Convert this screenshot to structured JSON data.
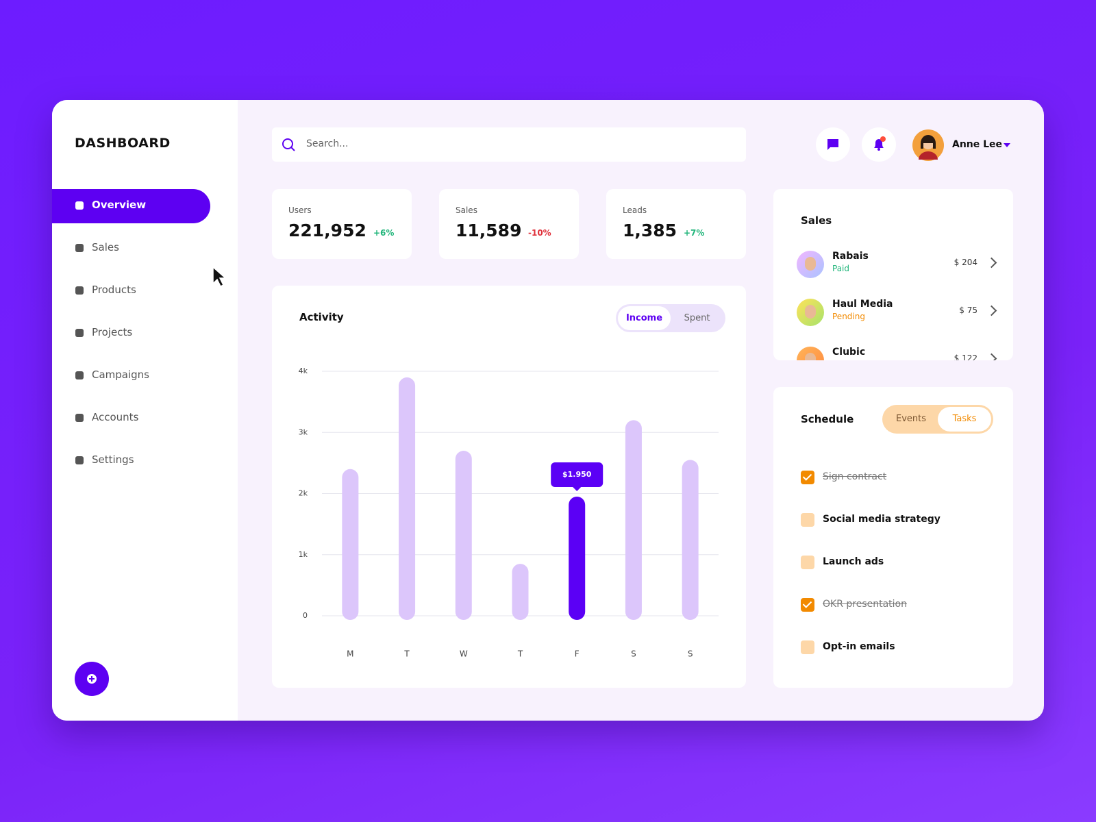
{
  "sidebar": {
    "title": "DASHBOARD",
    "nav": [
      "Overview",
      "Sales",
      "Products",
      "Projects",
      "Campaigns",
      "Accounts",
      "Settings"
    ]
  },
  "header": {
    "search_placeholder": "Search...",
    "user": "Anne Lee"
  },
  "stats": [
    {
      "label": "Users",
      "value": "221,952",
      "change": "+6%"
    },
    {
      "label": "Sales",
      "value": "11,589",
      "change": "-10%"
    },
    {
      "label": "Leads",
      "value": "1,385",
      "change": "+7%"
    }
  ],
  "chart_data": {
    "type": "bar",
    "title": "Activity",
    "toggle": [
      "Income",
      "Spent"
    ],
    "categories": [
      "M",
      "T",
      "W",
      "T",
      "F",
      "S",
      "S"
    ],
    "values": [
      2400,
      3900,
      2700,
      850,
      1950,
      3200,
      2550
    ],
    "value_labels": [
      null,
      null,
      null,
      null,
      "$1.950",
      null,
      null
    ],
    "colors": [
      "#dcc6fb",
      "#dcc6fb",
      "#dcc6fb",
      "#dcc6fb",
      "#5b00f5",
      "#dcc6fb",
      "#dcc6fb"
    ],
    "ylim": [
      0,
      4000
    ],
    "yticks": [
      0,
      {
        "value": 1000,
        "label": "1k"
      },
      {
        "value": 2000,
        "label": "2k"
      },
      {
        "value": 3000,
        "label": "3k"
      },
      {
        "value": 4000,
        "label": "4k"
      }
    ],
    "grid": true
  },
  "sales": {
    "title": "Sales",
    "rows": [
      {
        "name": "Rabais",
        "status": "Paid",
        "amount": "$ 204"
      },
      {
        "name": "Haul Media",
        "status": "Pending",
        "amount": "$ 75"
      },
      {
        "name": "Clubic",
        "amount": "$ 122"
      }
    ]
  },
  "schedule": {
    "title": "Schedule",
    "tabs": [
      "Events",
      "Tasks"
    ],
    "tasks": [
      {
        "label": "Sign contract",
        "done": true
      },
      {
        "label": "Social media strategy",
        "done": false
      },
      {
        "label": "Launch ads",
        "done": false
      },
      {
        "label": "OKR presentation",
        "done": true
      },
      {
        "label": "Opt-in emails",
        "done": false
      }
    ]
  }
}
